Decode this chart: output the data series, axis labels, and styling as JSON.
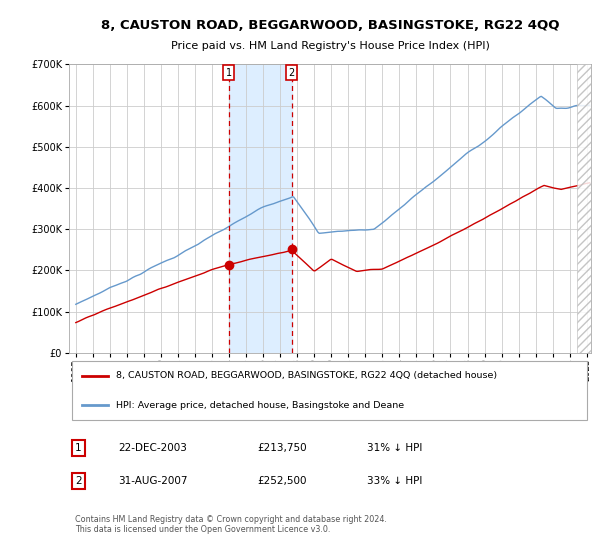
{
  "title": "8, CAUSTON ROAD, BEGGARWOOD, BASINGSTOKE, RG22 4QQ",
  "subtitle": "Price paid vs. HM Land Registry's House Price Index (HPI)",
  "legend_line1": "8, CAUSTON ROAD, BEGGARWOOD, BASINGSTOKE, RG22 4QQ (detached house)",
  "legend_line2": "HPI: Average price, detached house, Basingstoke and Deane",
  "annotation1_label": "1",
  "annotation1_date": "22-DEC-2003",
  "annotation1_price": "£213,750",
  "annotation1_hpi": "31% ↓ HPI",
  "annotation2_label": "2",
  "annotation2_date": "31-AUG-2007",
  "annotation2_price": "£252,500",
  "annotation2_hpi": "33% ↓ HPI",
  "footer": "Contains HM Land Registry data © Crown copyright and database right 2024.\nThis data is licensed under the Open Government Licence v3.0.",
  "red_color": "#cc0000",
  "blue_color": "#6699cc",
  "background_color": "#ffffff",
  "grid_color": "#cccccc",
  "shade_color": "#ddeeff",
  "ylim": [
    0,
    700000
  ],
  "yticks": [
    0,
    100000,
    200000,
    300000,
    400000,
    500000,
    600000,
    700000
  ],
  "ytick_labels": [
    "£0",
    "£100K",
    "£200K",
    "£300K",
    "£400K",
    "£500K",
    "£600K",
    "£700K"
  ],
  "marker1_x_year": 2003.97,
  "marker1_y": 213750,
  "marker2_x_year": 2007.67,
  "marker2_y": 252500,
  "vline1_x": 2003.97,
  "vline2_x": 2007.67,
  "hatch_start": 2024.42,
  "hatch_end": 2025.25,
  "xmin": 1994.6,
  "xmax": 2025.25
}
